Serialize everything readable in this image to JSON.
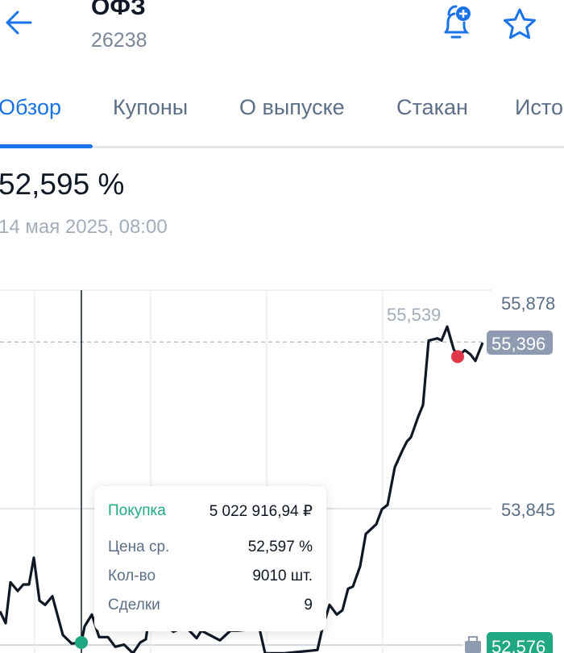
{
  "header": {
    "title": "ОФЗ",
    "ticker": "26238",
    "icons": [
      "arrow-left-icon",
      "bell-plus-icon",
      "star-icon"
    ],
    "accent": "#1a73e8"
  },
  "tabs": [
    {
      "label": "Обзор",
      "active": true
    },
    {
      "label": "Купоны"
    },
    {
      "label": "О выпуске"
    },
    {
      "label": "Стакан"
    },
    {
      "label": "Исто"
    }
  ],
  "quote": {
    "price": "52,595 %",
    "datetime": "14 мая 2025, 08:00"
  },
  "tooltip": {
    "side": "Покупка",
    "amount": "5 022 916,94 ₽",
    "rows": [
      {
        "label": "Цена ср.",
        "value": "52,597 %"
      },
      {
        "label": "Кол-во",
        "value": "9010 шт."
      },
      {
        "label": "Сделки",
        "value": "9"
      }
    ],
    "side_color": "#1fa882"
  },
  "chart_data": {
    "type": "line",
    "ylim": [
      52.576,
      55.878
    ],
    "y_ticks": [
      "55,878",
      "53,845"
    ],
    "high_label": "55,539",
    "current_label": "55,396",
    "current_value": 55.396,
    "position_label": "52,576",
    "position_value": 52.576,
    "grid": true,
    "series": [
      {
        "values": [
          52.89,
          52.78,
          53.16,
          53.08,
          53.14,
          53.14,
          53.39,
          52.99,
          52.95,
          53.03,
          52.67,
          52.59,
          52.6,
          52.75,
          52.86,
          52.65,
          52.65,
          52.56,
          52.58,
          52.5,
          52.6,
          52.63,
          52.73,
          52.8,
          52.7,
          52.75,
          52.64,
          52.71,
          52.62,
          52.71,
          52.71,
          52.73,
          52.5,
          52.5,
          52.53,
          52.73,
          52.95,
          52.86,
          52.9,
          53.1,
          53.12,
          53.31,
          53.61,
          53.7,
          53.84,
          53.88,
          54.23,
          54.38,
          54.47,
          54.51,
          54.7,
          54.81,
          55.41,
          55.43,
          55.41,
          55.54,
          55.33,
          55.26,
          55.32,
          55.28,
          55.22,
          55.39
        ]
      }
    ],
    "markers": [
      {
        "type": "buy",
        "index": 12,
        "color": "#1fa882"
      },
      {
        "type": "sell",
        "index": 57,
        "color": "#e0384a"
      }
    ],
    "line_color": "#0f1824"
  }
}
